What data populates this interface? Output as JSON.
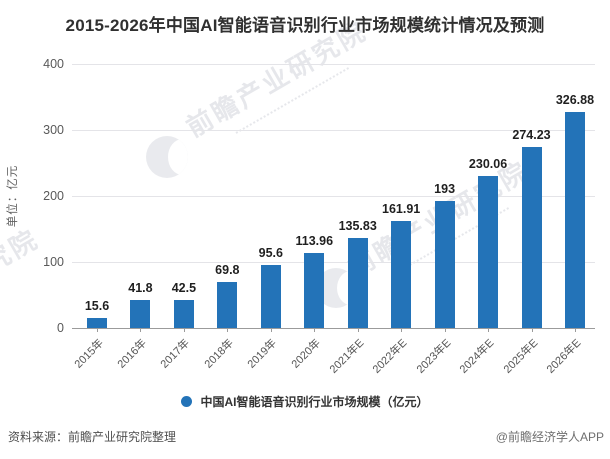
{
  "title": "2015-2026年中国AI智能语音识别行业市场规模统计情况及预测",
  "chart_data": {
    "type": "bar",
    "categories": [
      "2015年",
      "2016年",
      "2017年",
      "2018年",
      "2019年",
      "2020年",
      "2021年E",
      "2022年E",
      "2023年E",
      "2024年E",
      "2025年E",
      "2026年E"
    ],
    "values": [
      15.6,
      41.8,
      42.5,
      69.8,
      95.6,
      113.96,
      135.83,
      161.91,
      193,
      230.06,
      274.23,
      326.88
    ],
    "value_labels": [
      "15.6",
      "41.8",
      "42.5",
      "69.8",
      "95.6",
      "113.96",
      "135.83",
      "161.91",
      "193",
      "230.06",
      "274.23",
      "326.88"
    ],
    "title": "2015-2026年中国AI智能语音识别行业市场规模统计情况及预测",
    "xlabel": "",
    "ylabel": "单位：亿元",
    "ylim": [
      0,
      400
    ],
    "yticks": [
      0,
      100,
      200,
      300,
      400
    ],
    "grid": "horizontal",
    "legend_position": "bottom",
    "legend": "中国AI智能语音识别行业市场规模（亿元）",
    "bar_color": "#2373b8"
  },
  "footer": {
    "source": "资料来源：前瞻产业研究院整理",
    "credit": "@前瞻经济学人APP"
  },
  "watermark": {
    "text": "前瞻产业研究院",
    "logo": "qianzhan-logo"
  }
}
